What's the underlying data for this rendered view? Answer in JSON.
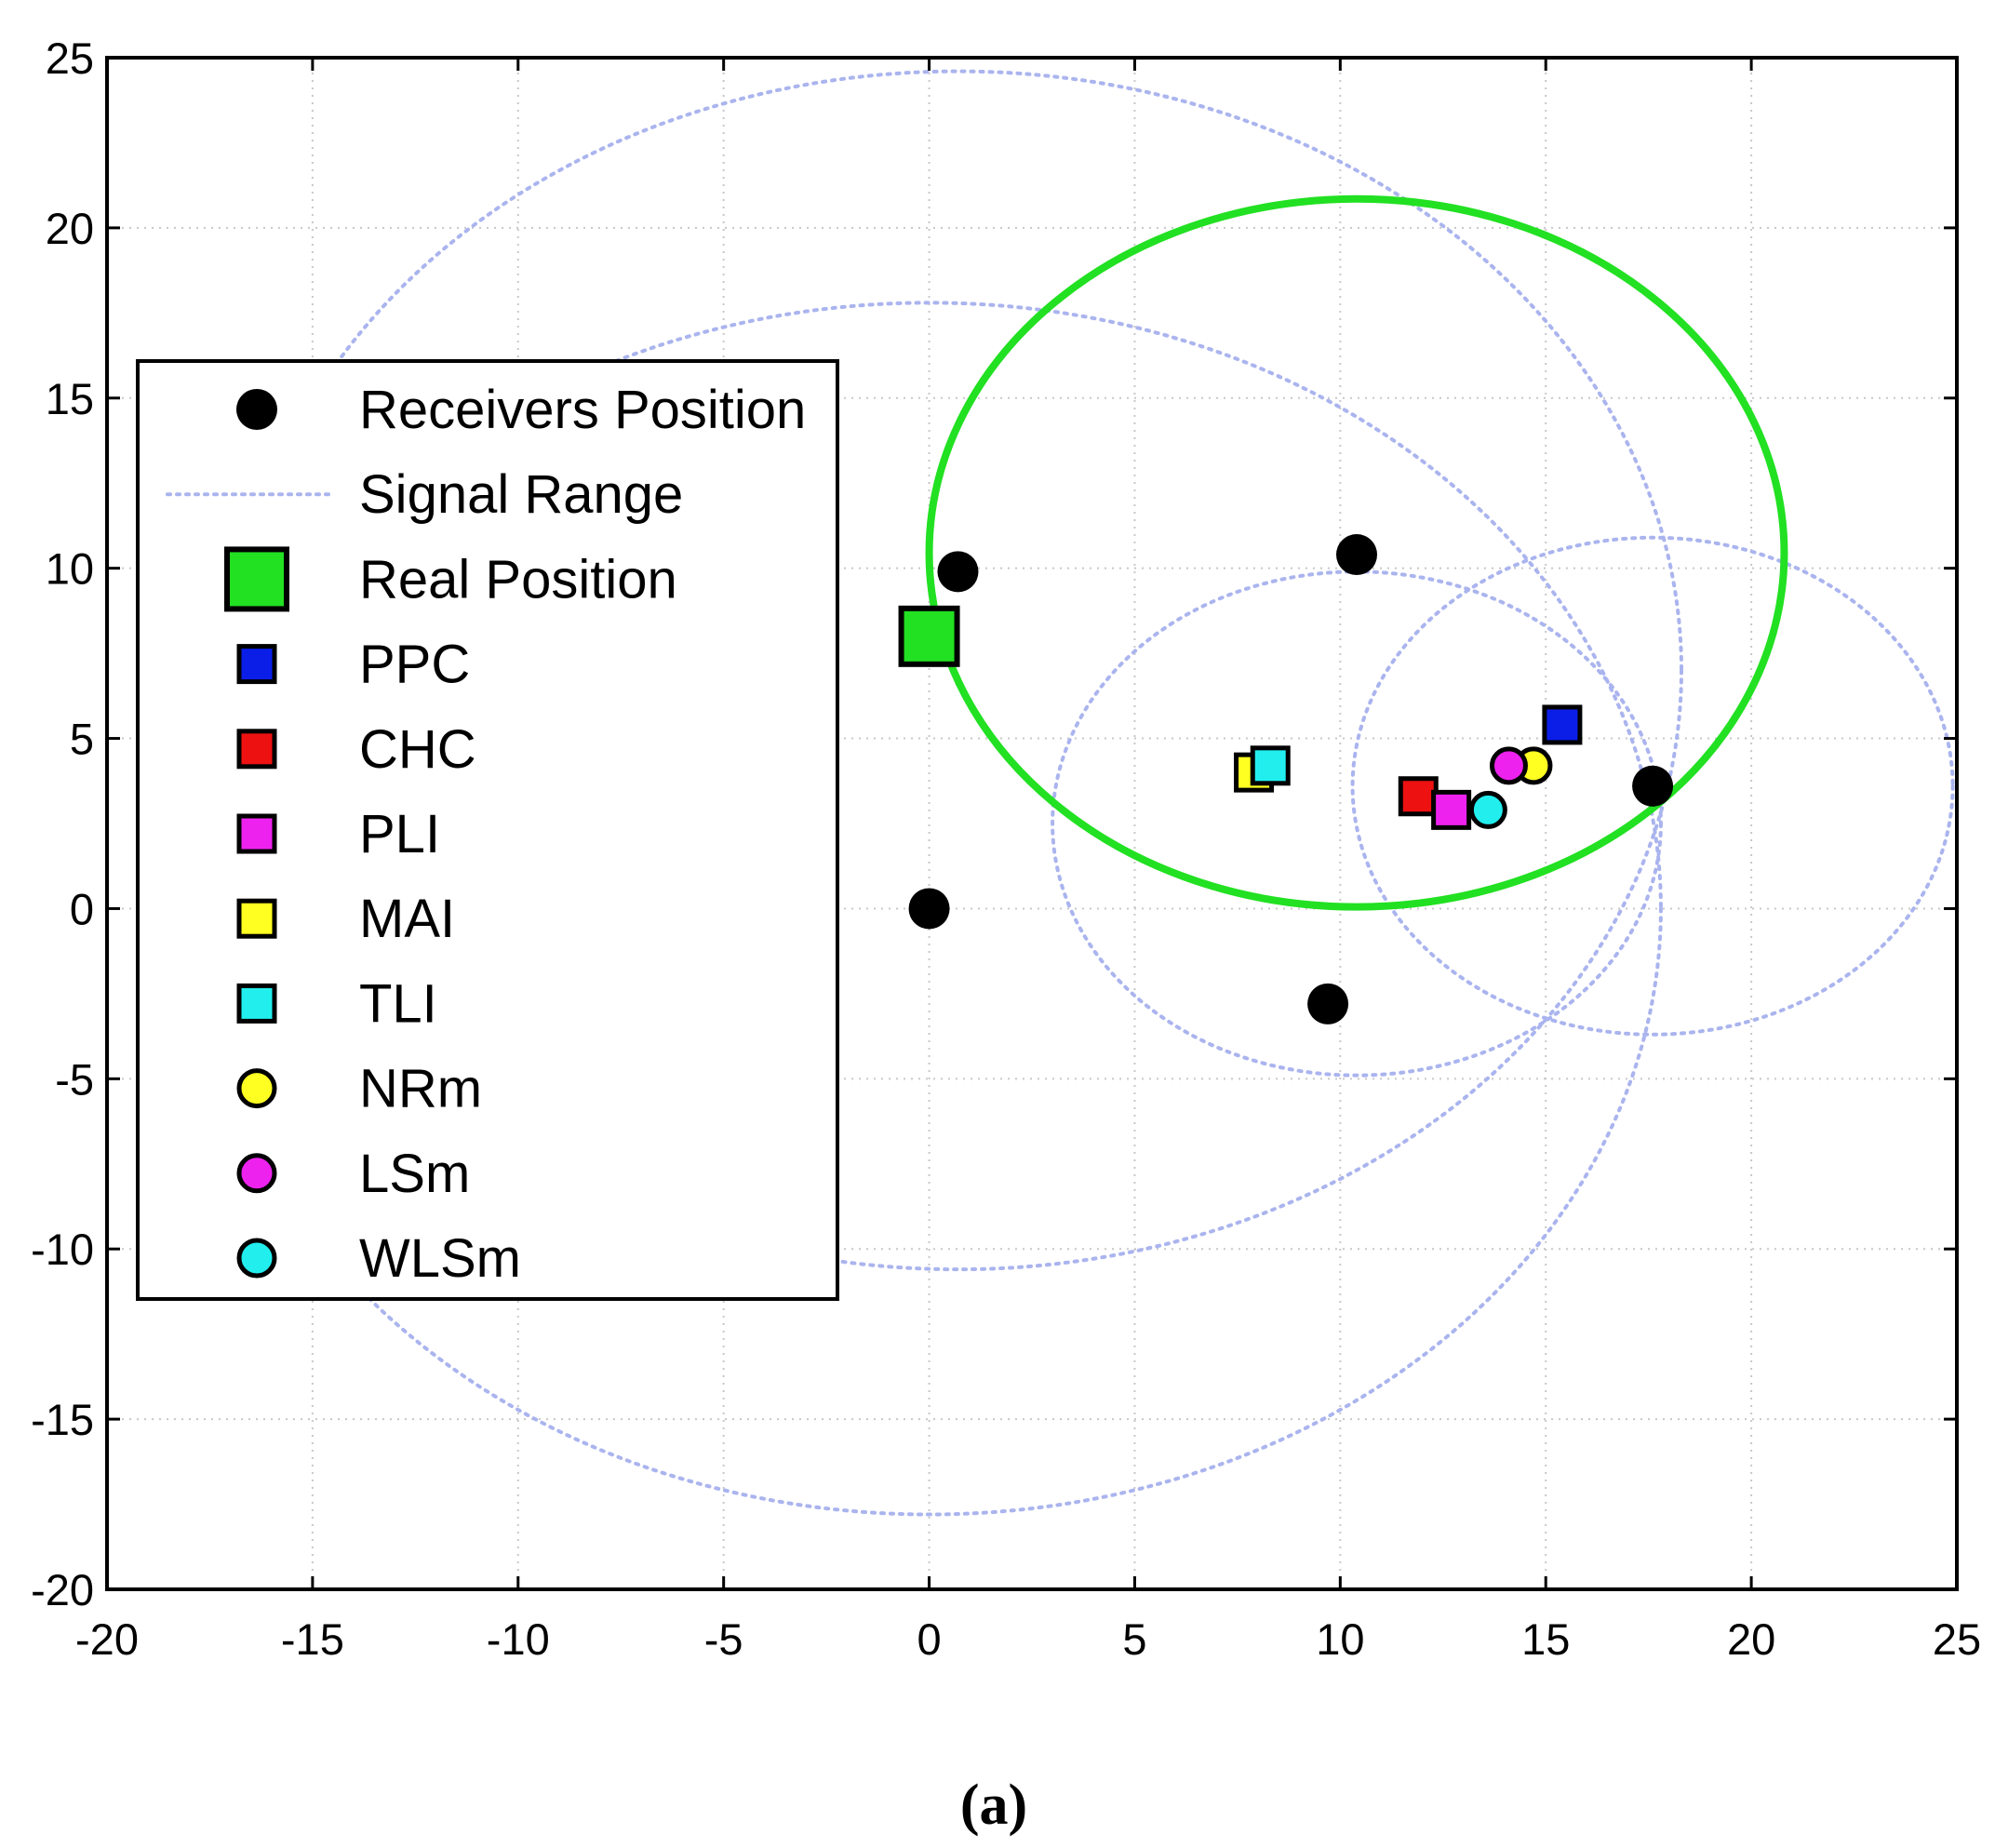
{
  "chart_data": {
    "type": "scatter",
    "title": "",
    "xlabel": "",
    "ylabel": "",
    "xlim": [
      -20,
      25
    ],
    "ylim": [
      -20,
      25
    ],
    "xticks": [
      -20,
      -15,
      -10,
      -5,
      0,
      5,
      10,
      15,
      20,
      25
    ],
    "yticks": [
      -20,
      -15,
      -10,
      -5,
      0,
      5,
      10,
      15,
      20,
      25
    ],
    "grid": true,
    "legend_position": "left",
    "caption": "(a)",
    "receivers": {
      "name": "Receivers Position",
      "color": "#000000",
      "points": [
        {
          "x": 0.7,
          "y": 9.9
        },
        {
          "x": 10.4,
          "y": 10.4
        },
        {
          "x": 0.0,
          "y": 0.0
        },
        {
          "x": 9.7,
          "y": -2.8
        },
        {
          "x": 17.6,
          "y": 3.6
        }
      ]
    },
    "signal_range": {
      "name": "Signal Range",
      "color": "#aab4ee",
      "circles": [
        {
          "cx": 0.7,
          "cy": 7.0,
          "r": 17.6
        },
        {
          "cx": 0.0,
          "cy": 0.0,
          "r": 17.8
        },
        {
          "cx": 17.6,
          "cy": 3.6,
          "r": 7.3
        },
        {
          "cx": 10.4,
          "cy": 2.5,
          "r": 7.4
        }
      ]
    },
    "green_circle": {
      "color": "#22e022",
      "cx": 10.4,
      "cy": 10.45,
      "r": 10.4
    },
    "real_position": {
      "name": "Real Position",
      "color": "#22e022",
      "x": 0.0,
      "y": 8.0
    },
    "estimates": [
      {
        "name": "PPC",
        "marker": "square",
        "color": "#0a1ee8",
        "x": 15.4,
        "y": 5.4
      },
      {
        "name": "CHC",
        "marker": "square",
        "color": "#ee1111",
        "x": 11.9,
        "y": 3.3
      },
      {
        "name": "PLI",
        "marker": "square",
        "color": "#ee22ee",
        "x": 12.7,
        "y": 2.9
      },
      {
        "name": "MAI",
        "marker": "square",
        "color": "#ffff22",
        "x": 7.9,
        "y": 4.0
      },
      {
        "name": "TLI",
        "marker": "square",
        "color": "#22eeee",
        "x": 8.3,
        "y": 4.2
      },
      {
        "name": "NRm",
        "marker": "circle",
        "color": "#ffff22",
        "x": 14.7,
        "y": 4.2
      },
      {
        "name": "LSm",
        "marker": "circle",
        "color": "#ee22ee",
        "x": 14.1,
        "y": 4.2
      },
      {
        "name": "WLSm",
        "marker": "circle",
        "color": "#22eeee",
        "x": 13.6,
        "y": 2.9
      }
    ],
    "legend": [
      "Receivers Position",
      "Signal Range",
      "Real Position",
      "PPC",
      "CHC",
      "PLI",
      "MAI",
      "TLI",
      "NRm",
      "LSm",
      "WLSm"
    ]
  }
}
